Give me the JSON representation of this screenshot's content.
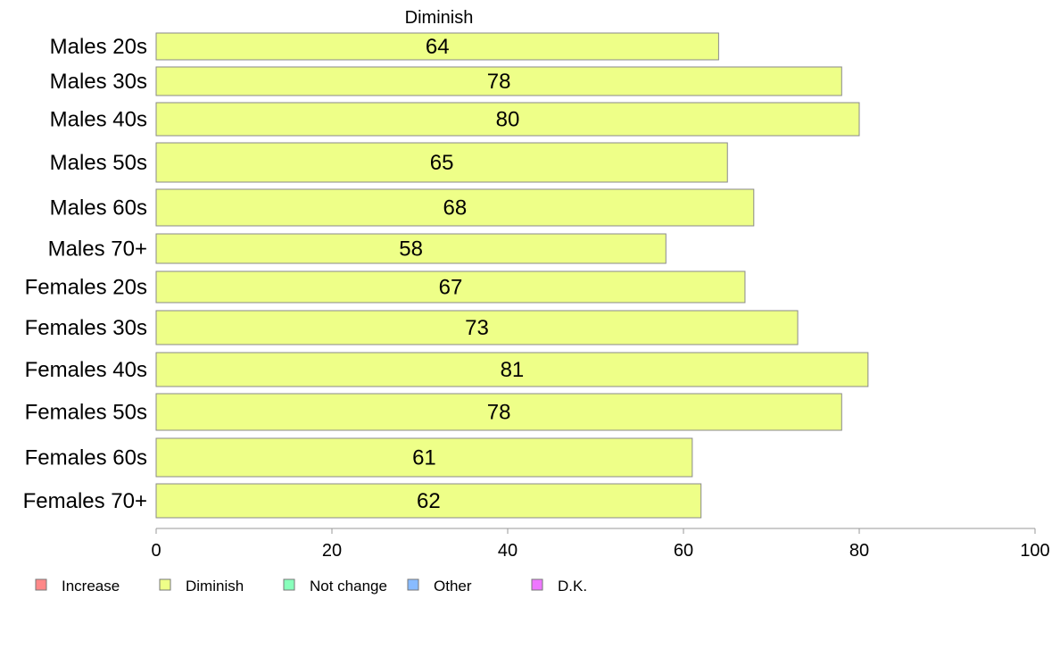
{
  "chart_data": {
    "type": "bar",
    "orientation": "horizontal",
    "series_title": "Diminish",
    "categories": [
      "Males 20s",
      "Males 30s",
      "Males 40s",
      "Males 50s",
      "Males 60s",
      "Males 70+",
      "Females 20s",
      "Females 30s",
      "Females 40s",
      "Females 50s",
      "Females 60s",
      "Females 70+"
    ],
    "series": [
      {
        "name": "Diminish",
        "color": "#eeff88",
        "values": [
          64,
          78,
          80,
          65,
          68,
          58,
          67,
          73,
          81,
          78,
          61,
          62
        ]
      }
    ],
    "xlim": [
      0,
      100
    ],
    "xticks": [
      0,
      20,
      40,
      60,
      80,
      100
    ],
    "grid": false,
    "legend": {
      "placement": "bottom-left",
      "items": [
        {
          "label": "Increase",
          "color": "#ff8888"
        },
        {
          "label": "Diminish",
          "color": "#eeff88"
        },
        {
          "label": "Not change",
          "color": "#88ffbb"
        },
        {
          "label": "Other",
          "color": "#88bbff"
        },
        {
          "label": "D.K.",
          "color": "#ee77ff"
        }
      ]
    }
  }
}
